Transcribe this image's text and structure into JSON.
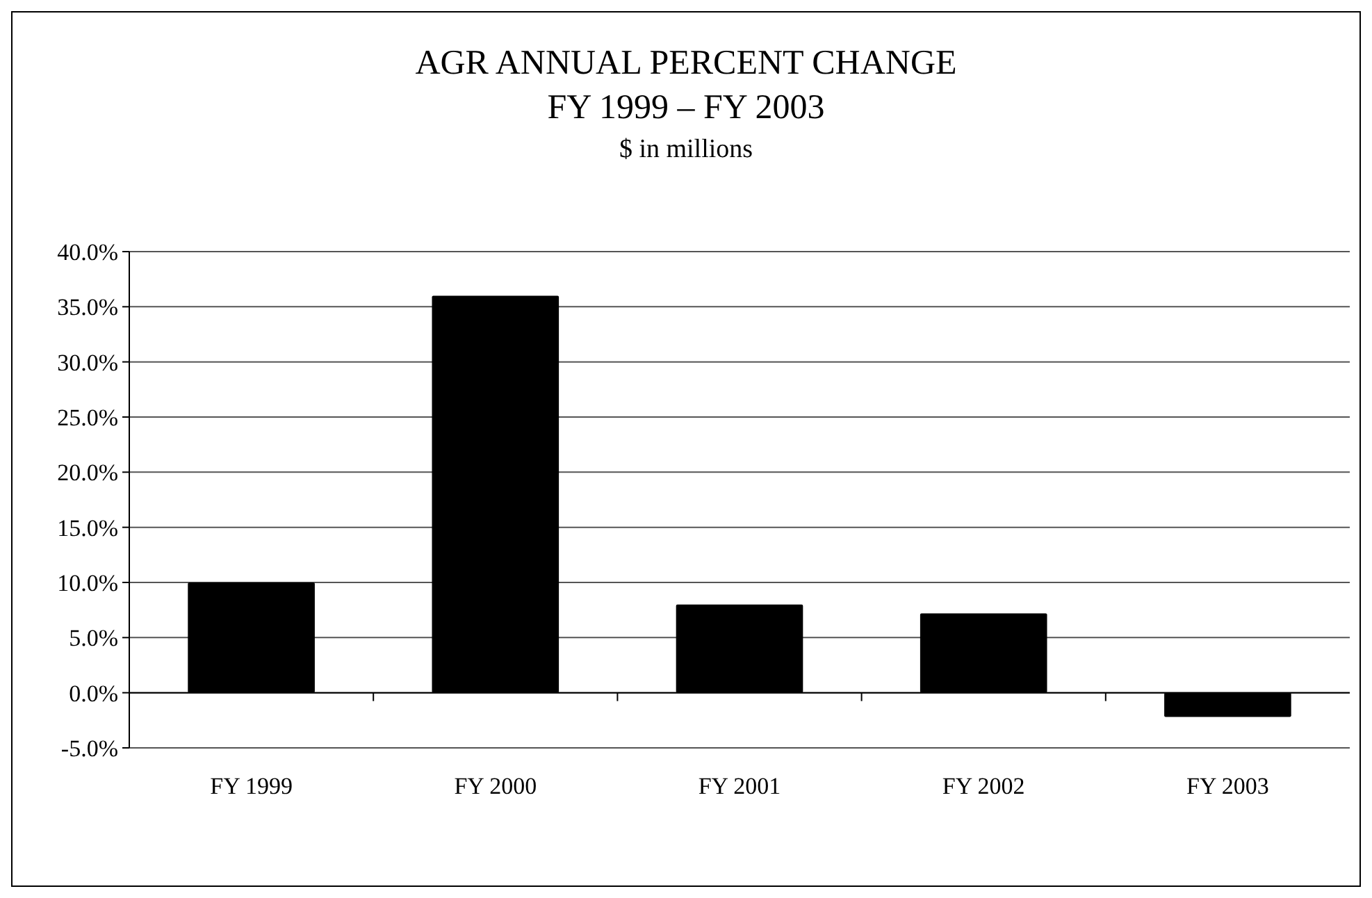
{
  "chart_data": {
    "type": "bar",
    "title": "AGR ANNUAL PERCENT CHANGE\nFY 1999 – FY 2003",
    "subtitle": "$ in millions",
    "categories": [
      "FY 1999",
      "FY 2000",
      "FY 2001",
      "FY 2002",
      "FY 2003"
    ],
    "values": [
      10.0,
      36.0,
      8.0,
      7.2,
      -2.2
    ],
    "color": "#000000",
    "ylim": [
      -5,
      40
    ],
    "yticks": [
      {
        "value": -5,
        "label": "-5.0%"
      },
      {
        "value": 0,
        "label": "0.0%"
      },
      {
        "value": 5,
        "label": "5.0%"
      },
      {
        "value": 10,
        "label": "10.0%"
      },
      {
        "value": 15,
        "label": "15.0%"
      },
      {
        "value": 20,
        "label": "20.0%"
      },
      {
        "value": 25,
        "label": "25.0%"
      },
      {
        "value": 30,
        "label": "30.0%"
      },
      {
        "value": 35,
        "label": "35.0%"
      },
      {
        "value": 40,
        "label": "40.0%"
      }
    ],
    "grid": "y"
  }
}
